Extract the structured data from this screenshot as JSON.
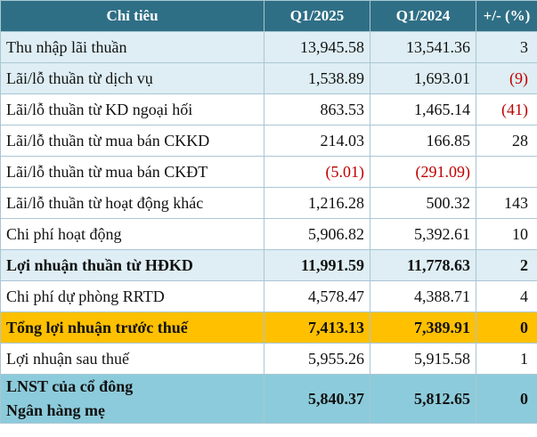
{
  "headers": [
    "Chỉ tiêu",
    "Q1/2025",
    "Q1/2024",
    "+/- (%)"
  ],
  "rows": [
    {
      "label": "Thu nhập lãi thuần",
      "q1_2025": "13,945.58",
      "q1_2024": "13,541.36",
      "change": "3"
    },
    {
      "label": "Lãi/lỗ thuần từ dịch vụ",
      "q1_2025": "1,538.89",
      "q1_2024": "1,693.01",
      "change": "(9)"
    },
    {
      "label": "Lãi/lỗ thuần từ KD ngoại hối",
      "q1_2025": "863.53",
      "q1_2024": "1,465.14",
      "change": "(41)"
    },
    {
      "label": "Lãi/lỗ thuần từ mua bán CKKD",
      "q1_2025": "214.03",
      "q1_2024": "166.85",
      "change": "28"
    },
    {
      "label": "Lãi/lỗ thuần từ mua bán CKĐT",
      "q1_2025": "(5.01)",
      "q1_2024": "(291.09)",
      "change": ""
    },
    {
      "label": "Lãi/lỗ thuần từ hoạt động khác",
      "q1_2025": "1,216.28",
      "q1_2024": "500.32",
      "change": "143"
    },
    {
      "label": "Chi phí hoạt động",
      "q1_2025": "5,906.82",
      "q1_2024": "5,392.61",
      "change": "10"
    },
    {
      "label": "Lợi nhuận thuần từ HĐKD",
      "q1_2025": "11,991.59",
      "q1_2024": "11,778.63",
      "change": "2"
    },
    {
      "label": "Chi phí dự phòng RRTD",
      "q1_2025": "4,578.47",
      "q1_2024": "4,388.71",
      "change": "4"
    },
    {
      "label": "Tổng lợi nhuận trước thuế",
      "q1_2025": "7,413.13",
      "q1_2024": "7,389.91",
      "change": "0"
    },
    {
      "label": "Lợi nhuận sau thuế",
      "q1_2025": "5,955.26",
      "q1_2024": "5,915.58",
      "change": "1"
    },
    {
      "label_line1": "LNST của cổ đông",
      "label_line2": "Ngân hàng mẹ",
      "q1_2025": "5,840.37",
      "q1_2024": "5,812.65",
      "change": "0"
    }
  ],
  "colors": {
    "header_bg": "#2f6f86",
    "light_row_bg": "#deeef4",
    "highlight_bg": "#ffc000",
    "footer_bg": "#8ccbdb",
    "negative_text": "#c00000"
  }
}
